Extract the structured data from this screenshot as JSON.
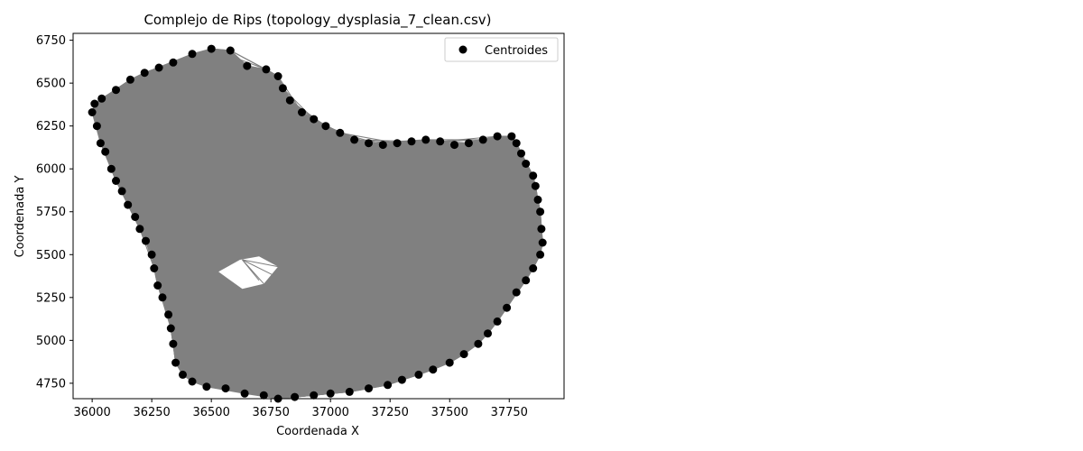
{
  "chart_data": {
    "type": "scatter",
    "title": "Complejo de Rips (topology_dysplasia_7_clean.csv)",
    "xlabel": "Coordenada X",
    "ylabel": "Coordenada Y",
    "xlim": [
      35920,
      37980
    ],
    "ylim": [
      4660,
      6790
    ],
    "xticks": [
      "36000",
      "36250",
      "36500",
      "36750",
      "37000",
      "37250",
      "37500",
      "37750"
    ],
    "yticks": [
      "4750",
      "5000",
      "5250",
      "5500",
      "5750",
      "6000",
      "6250",
      "6500",
      "6750"
    ],
    "legend": {
      "label": "Centroides",
      "placement": "top-right"
    },
    "colors": {
      "points": "#000000",
      "edges": "#808080",
      "fill": "#808080"
    },
    "series": [
      {
        "name": "Centroides",
        "points": [
          [
            36000,
            6330
          ],
          [
            36020,
            6250
          ],
          [
            36035,
            6150
          ],
          [
            36055,
            6100
          ],
          [
            36080,
            6000
          ],
          [
            36100,
            5930
          ],
          [
            36125,
            5870
          ],
          [
            36150,
            5790
          ],
          [
            36180,
            5720
          ],
          [
            36200,
            5650
          ],
          [
            36225,
            5580
          ],
          [
            36250,
            5500
          ],
          [
            36260,
            5420
          ],
          [
            36275,
            5320
          ],
          [
            36295,
            5250
          ],
          [
            36320,
            5150
          ],
          [
            36330,
            5070
          ],
          [
            36340,
            4980
          ],
          [
            36350,
            4870
          ],
          [
            36380,
            4800
          ],
          [
            36420,
            4760
          ],
          [
            36480,
            4730
          ],
          [
            36560,
            4720
          ],
          [
            36640,
            4690
          ],
          [
            36720,
            4680
          ],
          [
            36780,
            4660
          ],
          [
            36850,
            4670
          ],
          [
            36930,
            4680
          ],
          [
            37000,
            4690
          ],
          [
            37080,
            4700
          ],
          [
            37160,
            4720
          ],
          [
            37240,
            4740
          ],
          [
            37300,
            4770
          ],
          [
            37370,
            4800
          ],
          [
            37430,
            4830
          ],
          [
            37500,
            4870
          ],
          [
            37560,
            4920
          ],
          [
            37620,
            4980
          ],
          [
            37660,
            5040
          ],
          [
            37700,
            5110
          ],
          [
            37740,
            5190
          ],
          [
            37780,
            5280
          ],
          [
            37820,
            5350
          ],
          [
            37850,
            5420
          ],
          [
            37880,
            5500
          ],
          [
            37890,
            5570
          ],
          [
            37885,
            5650
          ],
          [
            37880,
            5750
          ],
          [
            37870,
            5820
          ],
          [
            37860,
            5900
          ],
          [
            37850,
            5960
          ],
          [
            37820,
            6030
          ],
          [
            37800,
            6090
          ],
          [
            37780,
            6150
          ],
          [
            37760,
            6190
          ],
          [
            37700,
            6190
          ],
          [
            37640,
            6170
          ],
          [
            37580,
            6150
          ],
          [
            37520,
            6140
          ],
          [
            37460,
            6160
          ],
          [
            37400,
            6170
          ],
          [
            37340,
            6160
          ],
          [
            37280,
            6150
          ],
          [
            37220,
            6140
          ],
          [
            37160,
            6150
          ],
          [
            37100,
            6170
          ],
          [
            37040,
            6210
          ],
          [
            36980,
            6250
          ],
          [
            36930,
            6290
          ],
          [
            36880,
            6330
          ],
          [
            36830,
            6400
          ],
          [
            36800,
            6470
          ],
          [
            36780,
            6540
          ],
          [
            36730,
            6580
          ],
          [
            36650,
            6600
          ],
          [
            36580,
            6690
          ],
          [
            36500,
            6700
          ],
          [
            36420,
            6670
          ],
          [
            36340,
            6620
          ],
          [
            36280,
            6590
          ],
          [
            36220,
            6560
          ],
          [
            36160,
            6520
          ],
          [
            36100,
            6460
          ],
          [
            36040,
            6410
          ],
          [
            36010,
            6380
          ]
        ]
      }
    ]
  }
}
